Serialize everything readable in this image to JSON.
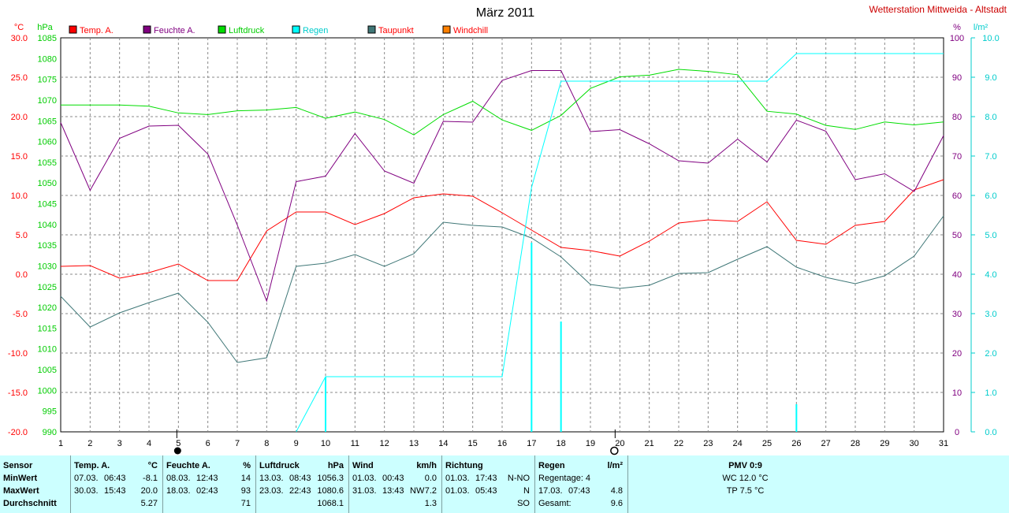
{
  "header": {
    "title": "März 2011",
    "station": "Wetterstation Mittweida - Altstadt",
    "unit_left1": "°C",
    "unit_left2": "hPa",
    "unit_right1": "%",
    "unit_right2": "l/m²"
  },
  "colors": {
    "temp": "#ff0000",
    "humidity": "#800080",
    "pressure": "#00dd00",
    "rain": "#00ffff",
    "dewpoint": "#3f7777",
    "windchill": "#ff8000"
  },
  "legend": [
    "Temp. A.",
    "Feuchte A.",
    "Luftdruck",
    "Regen",
    "Taupunkt",
    "Windchill"
  ],
  "chart_data": {
    "type": "line",
    "x": [
      1,
      2,
      3,
      4,
      5,
      6,
      7,
      8,
      9,
      10,
      11,
      12,
      13,
      14,
      15,
      16,
      17,
      18,
      19,
      20,
      21,
      22,
      23,
      24,
      25,
      26,
      27,
      28,
      29,
      30,
      31
    ],
    "xlim": [
      1,
      31
    ],
    "y_temp_ticks": [
      "30.0",
      "25.0",
      "20.0",
      "15.0",
      "10.0",
      "5.0",
      "0.0",
      "-5.0",
      "-10.0",
      "-15.0",
      "-20.0"
    ],
    "y_pressure_ticks": [
      "1085",
      "1080",
      "1075",
      "1070",
      "1065",
      "1060",
      "1055",
      "1050",
      "1045",
      "1040",
      "1035",
      "1030",
      "1025",
      "1020",
      "1015",
      "1010",
      "1005",
      "1000",
      "995",
      "990"
    ],
    "y_humidity_ticks": [
      "100",
      "90",
      "80",
      "70",
      "60",
      "50",
      "40",
      "30",
      "20",
      "10",
      "0"
    ],
    "y_rain_ticks": [
      "10.0",
      "9.0",
      "8.0",
      "7.0",
      "6.0",
      "5.0",
      "4.0",
      "3.0",
      "2.0",
      "1.0",
      "0.0"
    ],
    "series": [
      {
        "name": "Temp. A.",
        "axis": "temp",
        "ylim": [
          -20,
          30
        ],
        "values": [
          1.0,
          1.1,
          -0.5,
          0.2,
          1.3,
          -0.8,
          -0.8,
          5.5,
          7.9,
          7.9,
          6.3,
          7.7,
          9.7,
          10.2,
          9.9,
          7.8,
          5.6,
          3.4,
          3.0,
          2.3,
          4.2,
          6.5,
          6.9,
          6.7,
          9.2,
          4.3,
          3.8,
          6.2,
          6.7,
          10.7,
          12.0
        ]
      },
      {
        "name": "Feuchte A.",
        "axis": "humidity",
        "ylim": [
          0,
          100
        ],
        "values": [
          78.5,
          61.3,
          74.5,
          77.6,
          77.8,
          70.5,
          52.5,
          33.2,
          63.5,
          64.9,
          75.7,
          66.2,
          63.1,
          78.8,
          78.6,
          89.2,
          91.7,
          91.7,
          76.2,
          76.7,
          73.1,
          68.8,
          68.2,
          74.3,
          68.5,
          79.1,
          76.3,
          64.0,
          65.5,
          61.0,
          75.2
        ]
      },
      {
        "name": "Luftdruck",
        "axis": "pressure",
        "ylim": [
          990,
          1085
        ],
        "values": [
          1068.8,
          1068.8,
          1068.8,
          1068.5,
          1066.9,
          1066.5,
          1067.4,
          1067.6,
          1068.2,
          1065.6,
          1067.1,
          1065.3,
          1061.6,
          1066.5,
          1069.7,
          1065.2,
          1062.7,
          1066.3,
          1072.8,
          1075.6,
          1076.0,
          1077.4,
          1076.9,
          1076.1,
          1067.3,
          1066.6,
          1063.9,
          1062.9,
          1064.7,
          1064.0,
          1064.7
        ]
      },
      {
        "name": "Taupunkt",
        "axis": "temp",
        "ylim": [
          -20,
          30
        ],
        "values": [
          -2.8,
          -6.7,
          -4.9,
          -3.6,
          -2.4,
          -6.1,
          -11.2,
          -10.6,
          1.0,
          1.4,
          2.5,
          1.0,
          2.6,
          6.6,
          6.2,
          6.0,
          4.6,
          2.2,
          -1.3,
          -1.8,
          -1.4,
          0.1,
          0.2,
          1.9,
          3.5,
          0.9,
          -0.4,
          -1.2,
          -0.2,
          2.3,
          7.4
        ]
      },
      {
        "name": "Regen",
        "axis": "rain",
        "ylim": [
          0,
          10
        ],
        "kind": "cumulative",
        "x": [
          9,
          10,
          16,
          17,
          18,
          25,
          26,
          31
        ],
        "values": [
          0,
          1.4,
          1.4,
          6.2,
          8.9,
          8.9,
          9.6,
          9.6
        ]
      }
    ],
    "rain_daily": {
      "x": [
        10,
        17,
        18,
        26
      ],
      "values": [
        1.4,
        4.8,
        2.8,
        0.7
      ]
    },
    "markers": {
      "new_moon_day": 5,
      "full_moon_day": 20
    }
  },
  "stats": {
    "sensor": {
      "header": "Sensor",
      "min": "MinWert",
      "max": "MaxWert",
      "avg": "Durchschnitt"
    },
    "temp": {
      "header": "Temp. A.",
      "unit": "°C",
      "min": {
        "date": "07.03.",
        "time": "06:43",
        "value": "-8.1"
      },
      "max": {
        "date": "30.03.",
        "time": "15:43",
        "value": "20.0"
      },
      "avg": "5.27"
    },
    "humidity": {
      "header": "Feuchte A.",
      "unit": "%",
      "min": {
        "date": "08.03.",
        "time": "12:43",
        "value": "14"
      },
      "max": {
        "date": "18.03.",
        "time": "02:43",
        "value": "93"
      },
      "avg": "71"
    },
    "pressure": {
      "header": "Luftdruck",
      "unit": "hPa",
      "min": {
        "date": "13.03.",
        "time": "08:43",
        "value": "1056.3"
      },
      "max": {
        "date": "23.03.",
        "time": "22:43",
        "value": "1080.6"
      },
      "avg": "1068.1"
    },
    "wind": {
      "header": "Wind",
      "unit": "km/h",
      "min": {
        "date": "01.03.",
        "time": "00:43",
        "value": "0.0"
      },
      "max": {
        "date": "31.03.",
        "time": "13:43",
        "dir": "NW",
        "value": "7.2"
      },
      "avg": "1.3"
    },
    "direction": {
      "header": "Richtung",
      "min": {
        "date": "01.03.",
        "time": "17:43",
        "value": "N-NO"
      },
      "max": {
        "date": "01.03.",
        "time": "05:43",
        "value": "N"
      },
      "avg": "SO"
    },
    "rain": {
      "header": "Regen",
      "unit": "l/m²",
      "days": "Regentage: 4",
      "max": {
        "date": "17.03.",
        "time": "07:43",
        "value": "4.8"
      },
      "total_label": "Gesamt:",
      "total": "9.6"
    },
    "pmv": {
      "header": "PMV 0:9",
      "wc": "WC 12.0 °C",
      "tp": "TP 7.5 °C"
    }
  }
}
